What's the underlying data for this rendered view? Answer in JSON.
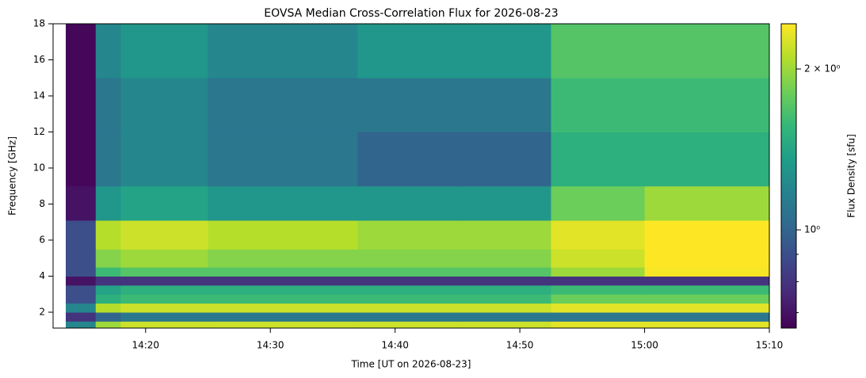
{
  "chart_data": {
    "type": "heatmap",
    "title": "EOVSA Median Cross-Correlation Flux for 2026-08-23",
    "x_label": "Time [UT on 2026-08-23]",
    "y_label": "Frequency [GHz]",
    "colorbar_label": "Flux Density [sfu]",
    "colormap": "viridis",
    "x_edges": [
      "14:13:36",
      "14:16:00",
      "14:18:00",
      "14:25:00",
      "14:37:00",
      "14:45:00",
      "14:52:30",
      "15:00:00",
      "15:10:00"
    ],
    "y_edges": [
      1.12,
      1.5,
      2,
      2.5,
      3,
      3.5,
      4,
      4.5,
      5.5,
      7.1,
      9,
      12,
      15,
      18
    ],
    "values": [
      [
        1.2,
        2.0,
        2.2,
        2.2,
        2.2,
        2.2,
        2.3,
        2.3
      ],
      [
        0.8,
        1.0,
        1.1,
        1.1,
        1.1,
        1.1,
        1.1,
        1.1
      ],
      [
        1.2,
        2.1,
        2.2,
        2.2,
        2.2,
        2.2,
        2.3,
        2.3
      ],
      [
        0.9,
        1.5,
        1.6,
        1.6,
        1.6,
        1.6,
        1.8,
        1.8
      ],
      [
        0.9,
        1.4,
        1.5,
        1.5,
        1.5,
        1.5,
        1.6,
        1.6
      ],
      [
        0.7,
        0.8,
        0.8,
        0.8,
        0.8,
        0.8,
        0.8,
        0.8
      ],
      [
        0.9,
        1.6,
        1.7,
        1.7,
        1.7,
        1.7,
        2.0,
        2.4
      ],
      [
        0.9,
        1.9,
        2.0,
        1.9,
        1.9,
        1.9,
        2.2,
        2.5
      ],
      [
        0.9,
        2.1,
        2.2,
        2.1,
        2.0,
        2.0,
        2.3,
        2.5
      ],
      [
        0.7,
        1.3,
        1.4,
        1.3,
        1.3,
        1.3,
        1.8,
        2.0
      ],
      [
        0.67,
        1.1,
        1.2,
        1.1,
        1.0,
        1.0,
        1.5,
        1.5
      ],
      [
        0.67,
        1.1,
        1.2,
        1.1,
        1.1,
        1.1,
        1.6,
        1.6
      ],
      [
        0.67,
        1.2,
        1.3,
        1.2,
        1.3,
        1.3,
        1.7,
        1.7
      ]
    ],
    "xlim": [
      "14:12:35",
      "15:10:00"
    ],
    "xticks": [
      "14:20",
      "14:30",
      "14:40",
      "14:50",
      "15:00",
      "15:10"
    ],
    "ylim": [
      1.12,
      18
    ],
    "yticks": [
      2,
      4,
      6,
      8,
      10,
      12,
      14,
      16,
      18
    ],
    "clim": [
      0.655,
      2.43
    ],
    "clog": true,
    "cticks": [
      {
        "value": 2,
        "label": "2 × 10⁰"
      },
      {
        "value": 1,
        "label": "10⁰"
      }
    ],
    "cminorticks": [
      0.7,
      0.8,
      0.9
    ]
  }
}
